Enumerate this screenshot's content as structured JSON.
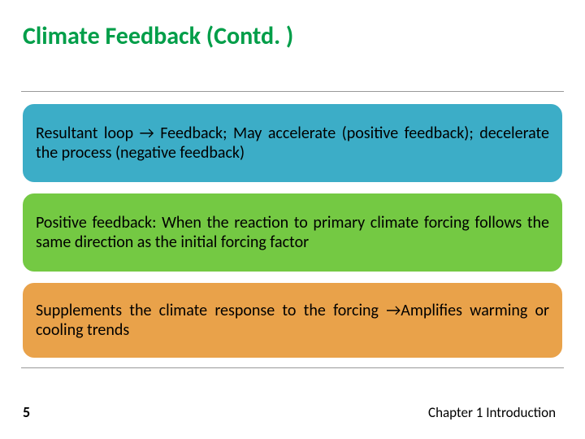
{
  "title": "Climate Feedback (Contd. )",
  "boxes": [
    {
      "text": "Resultant  loop  →  Feedback;  May  accelerate  (positive feedback);  decelerate the process (negative feedback)",
      "bg_color": "#3cadc7",
      "border_color": "#ffffff"
    },
    {
      "text": "Positive feedback: When the reaction to primary climate forcing follows the same direction as the initial forcing factor",
      "bg_color": "#74c943",
      "border_color": "#ffffff"
    },
    {
      "text": "Supplements the climate response to the forcing →Amplifies warming or cooling trends",
      "bg_color": "#e9a24a",
      "border_color": "#ffffff"
    }
  ],
  "page_number": "5",
  "chapter_label": "Chapter 1 Introduction",
  "title_color": "#009e49",
  "title_fontsize": 30,
  "body_fontsize": 20,
  "hr_color": "#999999",
  "background_color": "#ffffff"
}
